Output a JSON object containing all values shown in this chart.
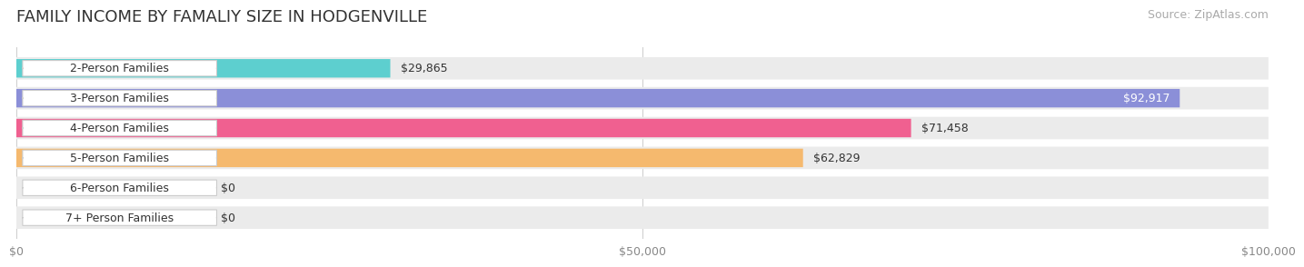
{
  "title": "FAMILY INCOME BY FAMALIY SIZE IN HODGENVILLE",
  "source": "Source: ZipAtlas.com",
  "categories": [
    "2-Person Families",
    "3-Person Families",
    "4-Person Families",
    "5-Person Families",
    "6-Person Families",
    "7+ Person Families"
  ],
  "values": [
    29865,
    92917,
    71458,
    62829,
    0,
    0
  ],
  "bar_colors": [
    "#5dcfcf",
    "#8b8fd8",
    "#f06090",
    "#f5b96e",
    "#f4a0a0",
    "#90b8e0"
  ],
  "label_colors": [
    "#000000",
    "#ffffff",
    "#ffffff",
    "#ffffff",
    "#000000",
    "#000000"
  ],
  "track_color": "#ebebeb",
  "label_bg": "#ffffff",
  "xlim": [
    0,
    100000
  ],
  "xticks": [
    0,
    50000,
    100000
  ],
  "xtick_labels": [
    "$0",
    "$50,000",
    "$100,000"
  ],
  "bg_color": "#ffffff",
  "title_fontsize": 13,
  "source_fontsize": 9,
  "bar_label_fontsize": 9,
  "cat_label_fontsize": 9
}
